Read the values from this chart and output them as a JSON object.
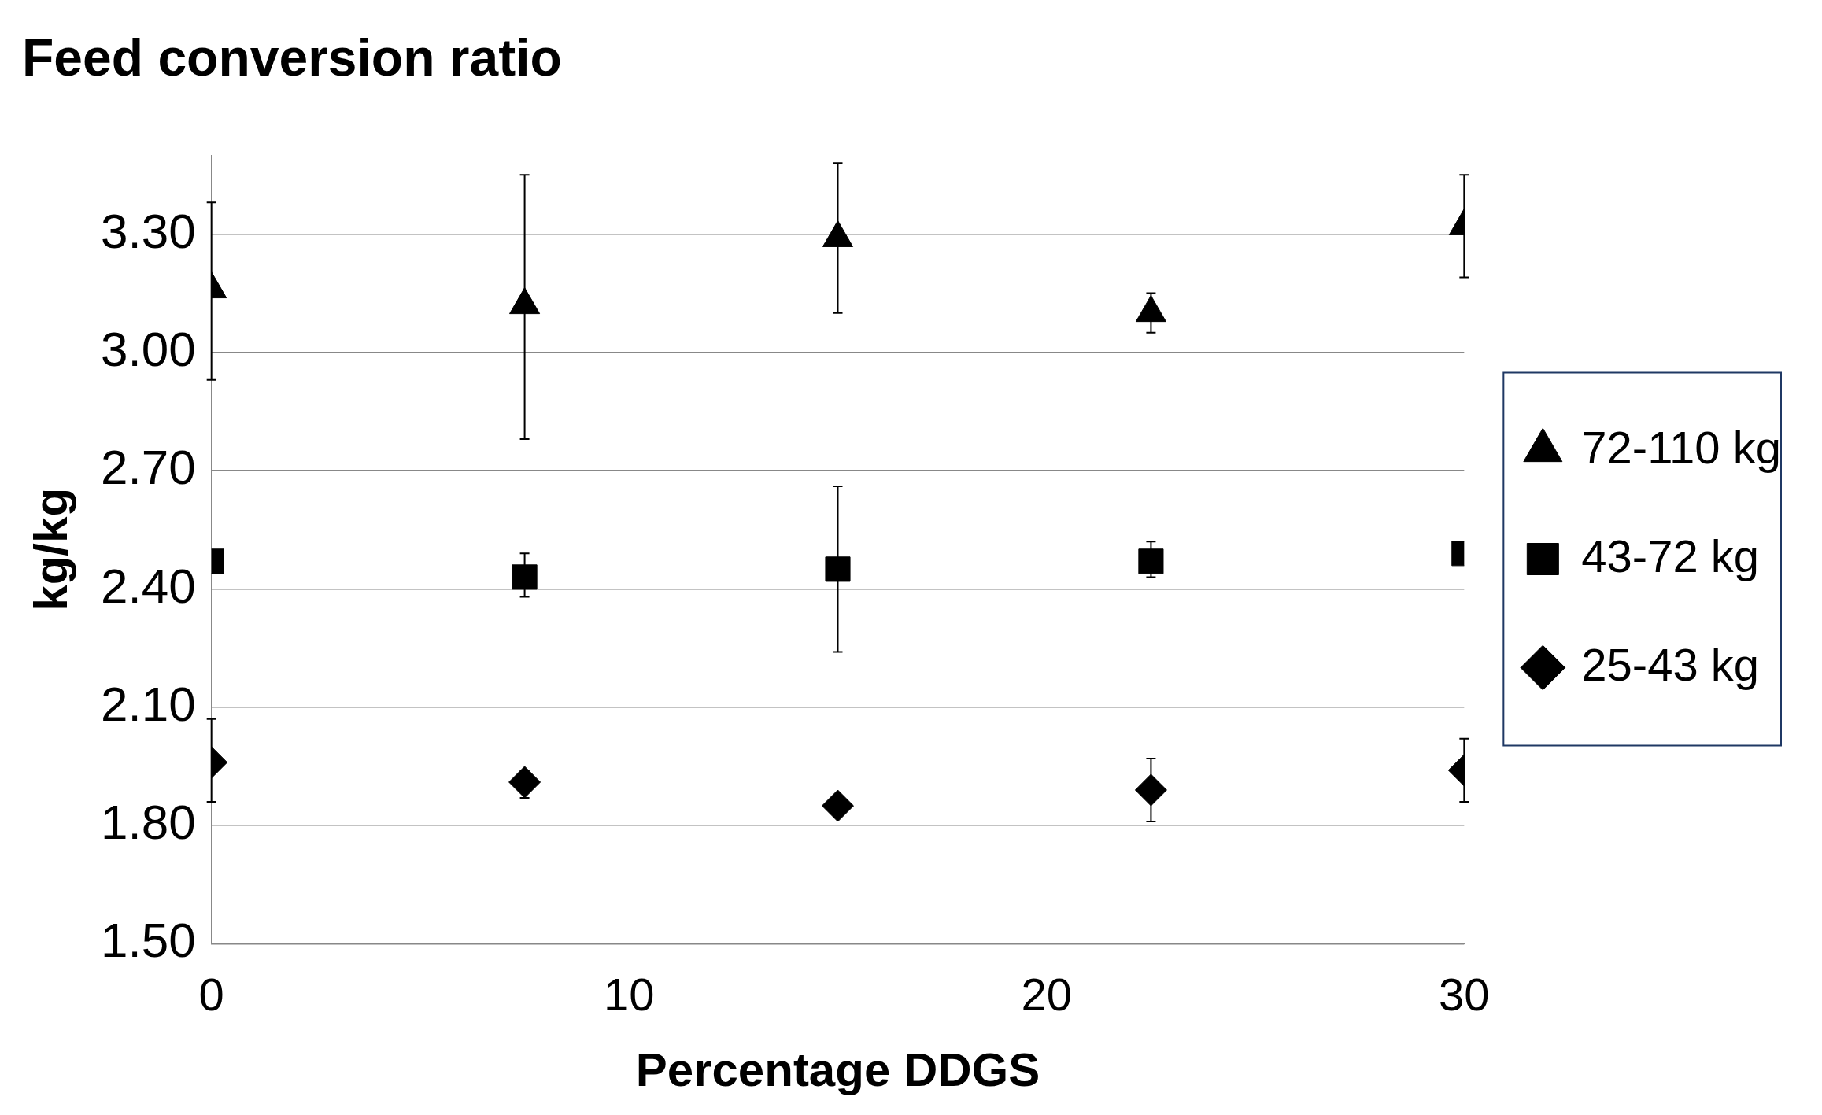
{
  "chart_data": {
    "type": "scatter",
    "title": "Feed conversion ratio",
    "xlabel": "Percentage DDGS",
    "ylabel": "kg/kg",
    "x": [
      0,
      7.5,
      15,
      22.5,
      30
    ],
    "series": [
      {
        "name": "72-110 kg",
        "color": "#000000",
        "marker": "triangle",
        "values": [
          3.16,
          3.12,
          3.29,
          3.1,
          3.32
        ],
        "errors": [
          [
            2.93,
            3.38
          ],
          [
            2.78,
            3.45
          ],
          [
            3.1,
            3.48
          ],
          [
            3.05,
            3.15
          ],
          [
            3.19,
            3.45
          ]
        ]
      },
      {
        "name": "43-72 kg",
        "color": "#000000",
        "marker": "square",
        "values": [
          2.47,
          2.43,
          2.45,
          2.47,
          2.49
        ],
        "errors": [
          null,
          [
            2.38,
            2.49
          ],
          [
            2.24,
            2.66
          ],
          [
            2.43,
            2.52
          ],
          null
        ]
      },
      {
        "name": "25-43 kg",
        "color": "#000000",
        "marker": "diamond",
        "values": [
          1.96,
          1.91,
          1.85,
          1.89,
          1.94
        ],
        "errors": [
          [
            1.86,
            2.07
          ],
          [
            1.87,
            1.94
          ],
          null,
          [
            1.81,
            1.97
          ],
          [
            1.86,
            2.02
          ]
        ]
      }
    ],
    "xlim": [
      0,
      30
    ],
    "xticks": [
      0,
      10,
      20,
      30
    ],
    "ylim": [
      1.5,
      3.5
    ],
    "yticks": [
      {
        "value": 1.5,
        "label": "1.50"
      },
      {
        "value": 1.8,
        "label": "1.80"
      },
      {
        "value": 2.1,
        "label": "2.10"
      },
      {
        "value": 2.4,
        "label": "2.40"
      },
      {
        "value": 2.7,
        "label": "2.70"
      },
      {
        "value": 3.0,
        "label": "3.00"
      },
      {
        "value": 3.3,
        "label": "3.30"
      }
    ],
    "grid": "y",
    "legend": "right"
  }
}
